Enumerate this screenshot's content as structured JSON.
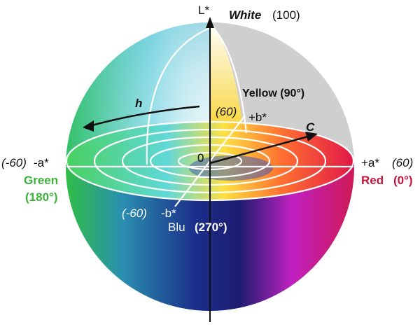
{
  "labels": {
    "l_axis": "L*",
    "white": "White",
    "white_value": "(100)",
    "yellow": "Yellow",
    "yellow_angle": "(90°)",
    "plus_b_value": "(60)",
    "plus_b": "+b*",
    "hue": "h",
    "chroma": "C",
    "origin": "0",
    "minus_a_value": "(-60)",
    "minus_a": "-a*",
    "green": "Green",
    "green_angle": "(180°)",
    "plus_a": "+a*",
    "plus_a_value": "(60)",
    "red": "Red",
    "red_angle": "(0°)",
    "minus_b_value": "(-60)",
    "minus_b": "-b*",
    "blue": "Blu",
    "blue_angle": "(270°)"
  },
  "colors": {
    "green": "#3bb33b",
    "red": "#c8143c",
    "axis": "#111111",
    "grid": "#ffffff"
  }
}
